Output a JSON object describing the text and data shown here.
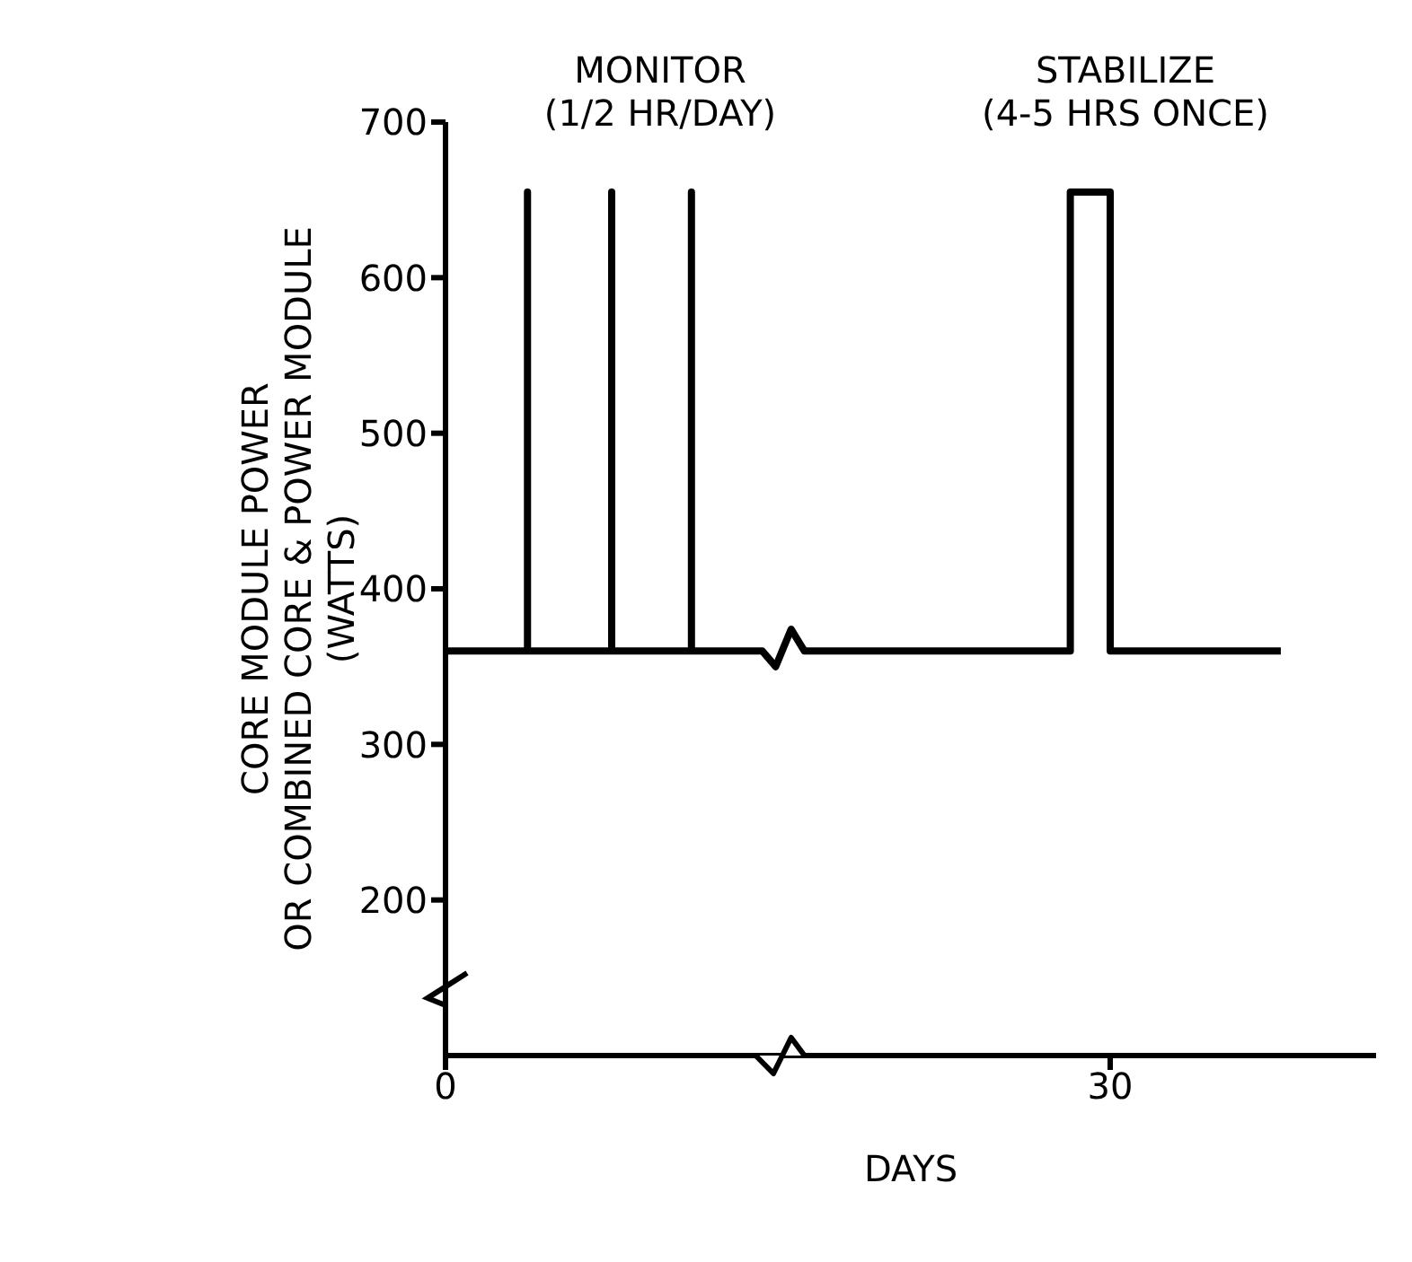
{
  "chart_data": {
    "type": "line",
    "xlabel": "DAYS",
    "ylabel": "CORE MODULE POWER\nOR COMBINED CORE & POWER MODULE\n(WATTS)",
    "x": [
      0,
      3.7,
      3.7,
      3.7,
      7.5,
      7.5,
      7.5,
      11.1,
      11.1,
      11.1,
      14.3,
      14.9,
      15.6,
      16.2,
      28.2,
      28.2,
      30.0,
      30.0,
      37.7
    ],
    "series": [
      {
        "color": "#000000",
        "values": [
          360,
          360,
          655,
          360,
          360,
          655,
          360,
          360,
          655,
          360,
          360,
          350,
          374,
          360,
          360,
          655,
          655,
          360,
          360
        ]
      }
    ],
    "xlim": [
      0,
      42
    ],
    "xticks": [
      0,
      30
    ],
    "ylim": [
      100,
      700
    ],
    "yticks": [
      200,
      300,
      400,
      500,
      600,
      700
    ],
    "annotations": [
      "MONITOR\n(1/2 HR/DAY)",
      "STABILIZE\n(4-5 HRS ONCE)"
    ],
    "grid": false,
    "marker": "none",
    "line_style": "solid"
  }
}
